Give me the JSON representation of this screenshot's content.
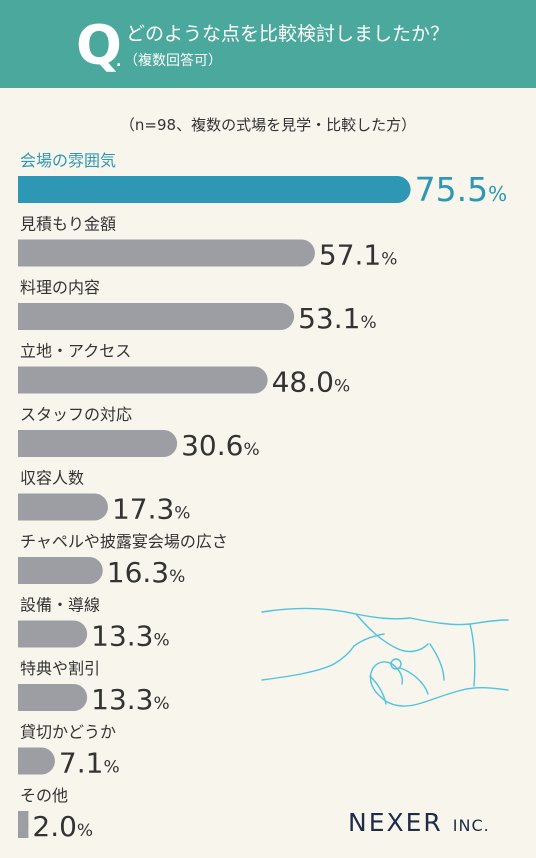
{
  "header": {
    "q_letter": "Q",
    "q_dot": ".",
    "title": "どのような点を比較検討しましたか？",
    "subtitle": "（複数回答可）"
  },
  "note": "（n=98、複数の式場を見学・比較した方）",
  "colors": {
    "header_bg": "#4aa99c",
    "highlight_bar": "#2e97b3",
    "bar": "#9d9ea3",
    "highlight_label": "#2e97b3",
    "text": "#333333",
    "logo": "#1e2b4a",
    "handshake_line": "#4fc3e0"
  },
  "chart_data": {
    "type": "bar",
    "orientation": "horizontal",
    "unit": "%",
    "highlight_index": 0,
    "categories": [
      "会場の雰囲気",
      "見積もり金額",
      "料理の内容",
      "立地・アクセス",
      "スタッフの対応",
      "収容人数",
      "チャペルや披露宴会場の広さ",
      "設備・導線",
      "特典や割引",
      "貸切かどうか",
      "その他"
    ],
    "values": [
      75.5,
      57.1,
      53.1,
      48.0,
      30.6,
      17.3,
      16.3,
      13.3,
      13.3,
      7.1,
      2.0
    ],
    "value_labels": [
      "75.5",
      "57.1",
      "53.1",
      "48.0",
      "30.6",
      "17.3",
      "16.3",
      "13.3",
      "13.3",
      "7.1",
      "2.0"
    ],
    "xlim": [
      0,
      100
    ],
    "grid": false,
    "legend": "none"
  },
  "logo": {
    "name": "NEXER",
    "suffix": "INC."
  },
  "decoration": {
    "handshake": "handshake-illustration"
  }
}
